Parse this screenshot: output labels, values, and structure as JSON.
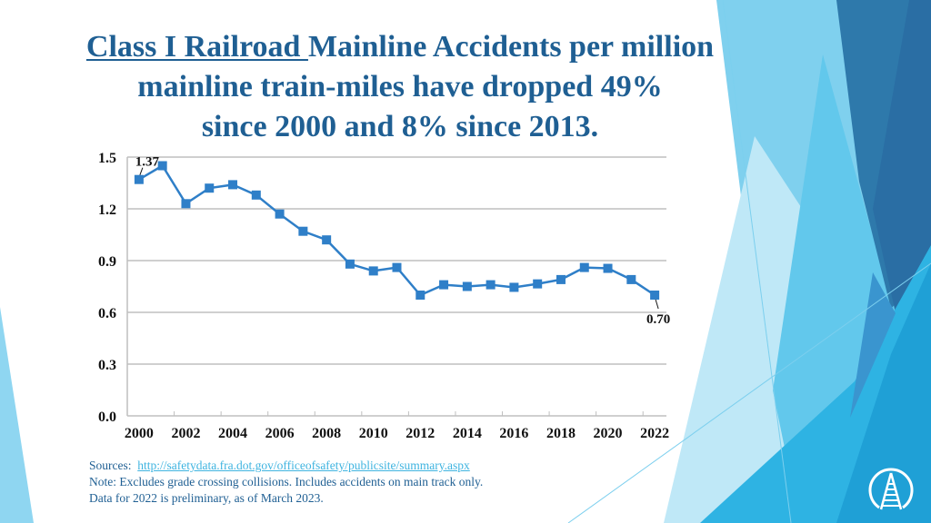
{
  "slide": {
    "title_underlined": "Class I Railroad ",
    "title_rest_line1": "Mainline Accidents per million",
    "title_line2": "mainline train-miles have dropped 49%",
    "title_line3": "since 2000 and 8% since 2013.",
    "sources_label": "Sources:",
    "sources_link": "http://safetydata.fra.dot.gov/officeofsafety/publicsite/summary.aspx",
    "note_line1": "Note: Excludes grade crossing collisions. Includes accidents on main track only.",
    "note_line2": "Data for 2022 is preliminary, as of March 2023.",
    "logo_icon": "railroad-track-icon",
    "colors": {
      "title": "#1f5f93",
      "series": "#2f7fc8",
      "link": "#3fb4e0",
      "grid": "#bfbfbf"
    }
  },
  "chart_data": {
    "type": "line",
    "title": "",
    "xlabel": "",
    "ylabel": "",
    "x": [
      2000,
      2001,
      2002,
      2003,
      2004,
      2005,
      2006,
      2007,
      2008,
      2009,
      2010,
      2011,
      2012,
      2013,
      2014,
      2015,
      2016,
      2017,
      2018,
      2019,
      2020,
      2021,
      2022
    ],
    "xtick_labels": [
      "2000",
      "2002",
      "2004",
      "2006",
      "2008",
      "2010",
      "2012",
      "2014",
      "2016",
      "2018",
      "2020",
      "2022"
    ],
    "ytick_labels": [
      "0.0",
      "0.3",
      "0.6",
      "0.9",
      "1.2",
      "1.5"
    ],
    "ylim": [
      0,
      1.5
    ],
    "grid": true,
    "legend": "none",
    "series": [
      {
        "name": "Mainline accidents per million mainline train-miles",
        "values": [
          1.37,
          1.45,
          1.23,
          1.32,
          1.34,
          1.28,
          1.17,
          1.07,
          1.02,
          0.88,
          0.84,
          0.86,
          0.7,
          0.76,
          0.75,
          0.76,
          0.745,
          0.765,
          0.79,
          0.86,
          0.855,
          0.79,
          0.7
        ],
        "marker": "square"
      }
    ],
    "annotations": [
      {
        "x": 2000,
        "text": "1.37"
      },
      {
        "x": 2022,
        "text": "0.70"
      }
    ]
  }
}
